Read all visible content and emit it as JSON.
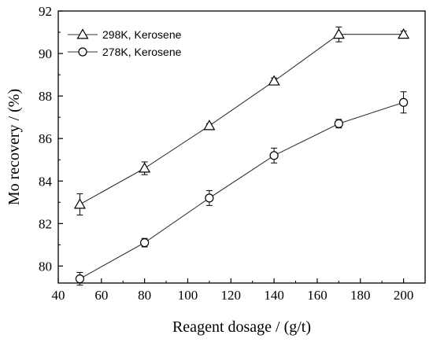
{
  "chart_data": {
    "type": "line",
    "title": "",
    "xlabel": "Reagent dosage / (g/t)",
    "ylabel": "Mo recovery / (%)",
    "xlim": [
      40,
      210
    ],
    "ylim": [
      79.2,
      92
    ],
    "xticks": [
      40,
      60,
      80,
      100,
      120,
      140,
      160,
      180,
      200
    ],
    "yticks": [
      80,
      82,
      84,
      86,
      88,
      90,
      92
    ],
    "grid": false,
    "legend_position": "top-left",
    "series": [
      {
        "name": "298K, Kerosene",
        "marker": "triangle",
        "x": [
          50,
          80,
          110,
          140,
          170,
          200
        ],
        "y": [
          82.9,
          84.6,
          86.6,
          88.7,
          90.9,
          90.9
        ],
        "err": [
          0.5,
          0.3,
          0.1,
          0.15,
          0.35,
          0.15
        ]
      },
      {
        "name": "278K, Kerosene",
        "marker": "circle",
        "x": [
          50,
          80,
          110,
          140,
          170,
          200
        ],
        "y": [
          79.4,
          81.1,
          83.2,
          85.2,
          86.7,
          87.7
        ],
        "err": [
          0.3,
          0.2,
          0.35,
          0.35,
          0.2,
          0.5
        ]
      }
    ]
  }
}
